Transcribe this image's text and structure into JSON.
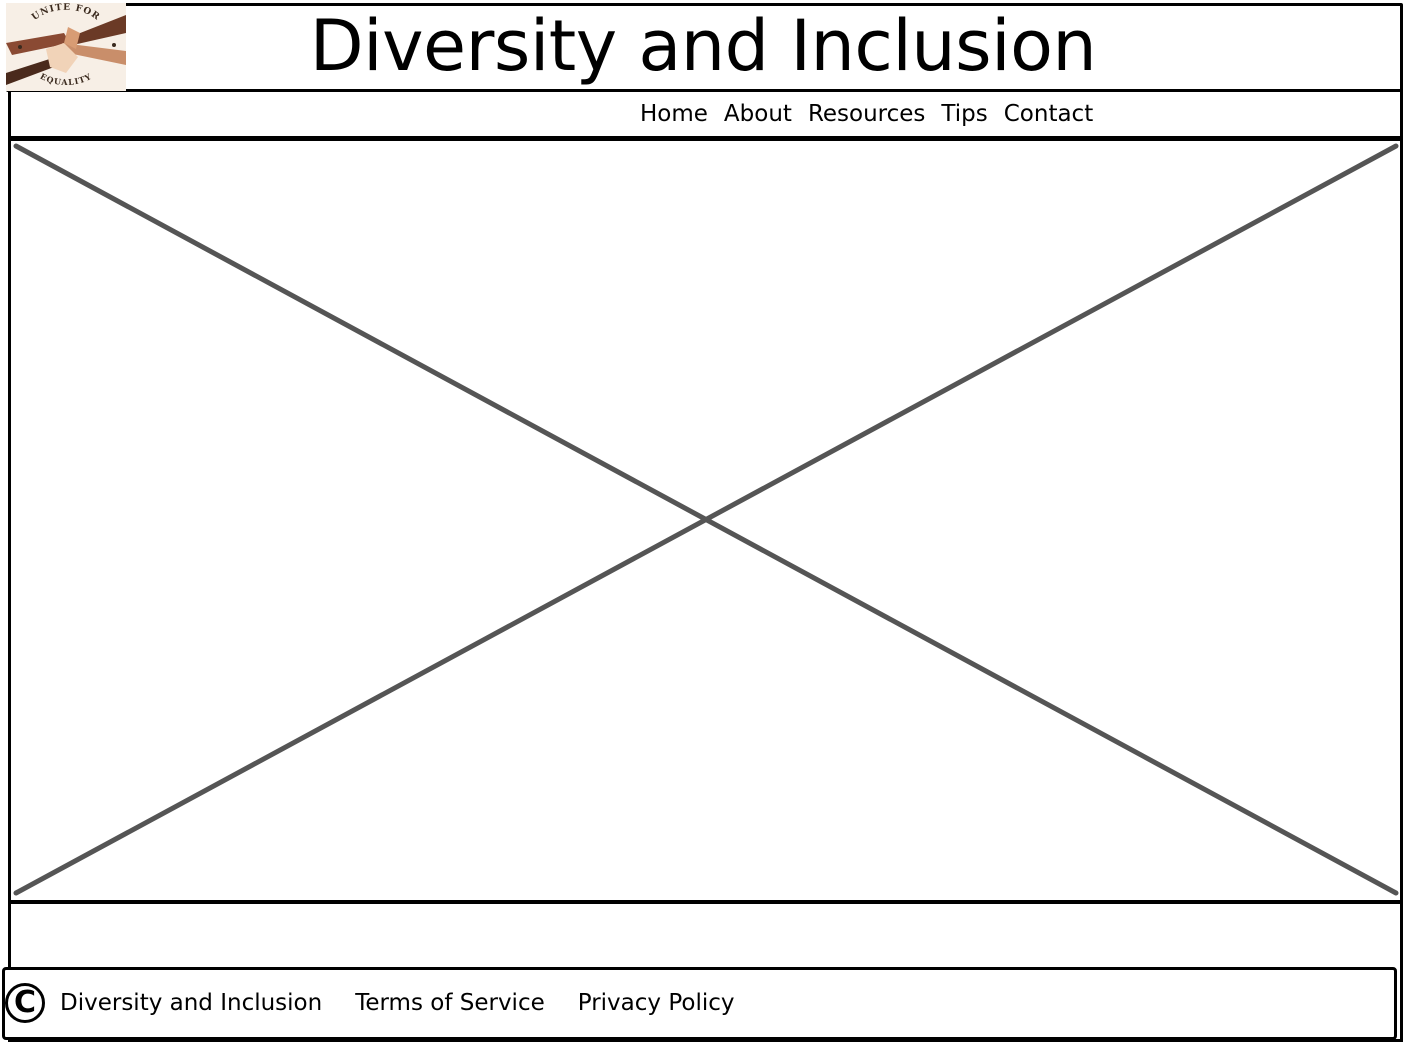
{
  "header": {
    "title": "Diversity and Inclusion",
    "logo_alt": "Unite for Equality logo",
    "logo_text_top": "UNITE FOR",
    "logo_text_bottom": "EQUALITY"
  },
  "nav": {
    "items": [
      {
        "label": "Home"
      },
      {
        "label": "About"
      },
      {
        "label": "Resources"
      },
      {
        "label": "Tips"
      },
      {
        "label": "Contact"
      }
    ]
  },
  "footer": {
    "copyright_symbol": "C",
    "brand": "Diversity and Inclusion",
    "terms": "Terms of Service",
    "privacy": "Privacy Policy"
  },
  "colors": {
    "line": "#000000",
    "placeholder_x": "#555555",
    "logo_bg": "#f7efe6"
  }
}
